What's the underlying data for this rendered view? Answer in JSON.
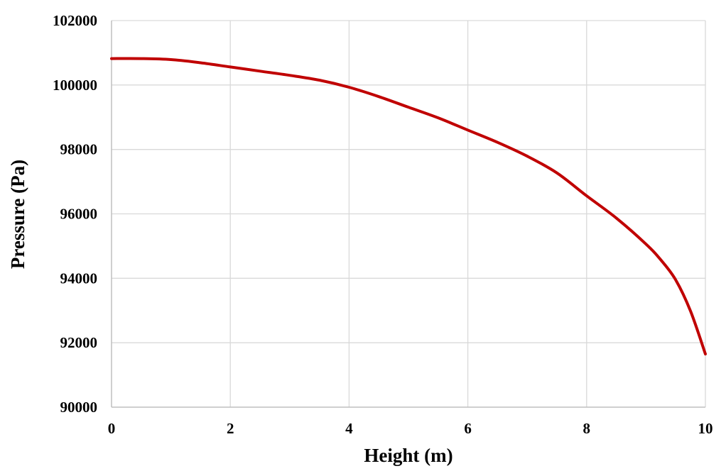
{
  "chart_data": {
    "type": "line",
    "title": "",
    "xlabel": "Height (m)",
    "ylabel": "Pressure (Pa)",
    "xlim": [
      0,
      10
    ],
    "ylim": [
      90000,
      102000
    ],
    "xticks": [
      0,
      2,
      4,
      6,
      8,
      10
    ],
    "yticks": [
      90000,
      92000,
      94000,
      96000,
      98000,
      100000,
      102000
    ],
    "x_tick_labels": [
      "0",
      "2",
      "4",
      "6",
      "8",
      "10"
    ],
    "y_tick_labels": [
      "90000",
      "92000",
      "94000",
      "96000",
      "98000",
      "100000",
      "102000"
    ],
    "grid": true,
    "legend": "none",
    "series": [
      {
        "color": "#c00000",
        "x": [
          0,
          0.5,
          1,
          1.5,
          2,
          2.5,
          3,
          3.5,
          4,
          4.5,
          5,
          5.5,
          6,
          6.5,
          7,
          7.5,
          8,
          8.5,
          9,
          9.25,
          9.5,
          9.75,
          10
        ],
        "y": [
          100820,
          100820,
          100790,
          100690,
          100560,
          100430,
          100300,
          100150,
          99930,
          99640,
          99310,
          98980,
          98600,
          98220,
          97790,
          97270,
          96560,
          95870,
          95060,
          94570,
          93950,
          92980,
          91650
        ]
      }
    ]
  }
}
